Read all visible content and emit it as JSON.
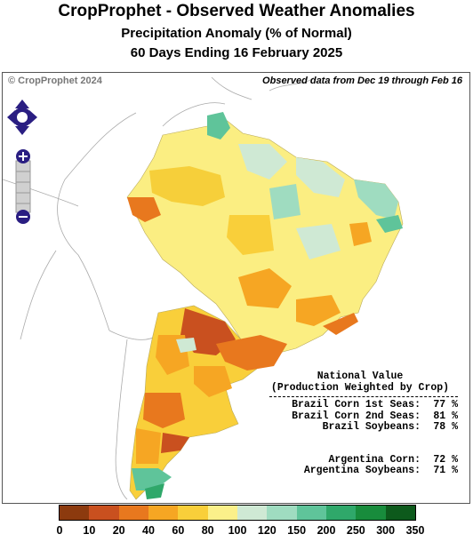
{
  "header": {
    "title": "CropProphet - Observed Weather Anomalies",
    "subtitle": "Precipitation Anomaly (% of Normal)",
    "period": "60 Days Ending 16 February 2025"
  },
  "map": {
    "copyright": "© CropProphet 2024",
    "observed_note": "Observed data from Dec 19 through Feb 16",
    "controls": {
      "pan": "pan-arrows-icon",
      "zoom_in": "plus-icon",
      "zoom_out": "minus-icon"
    }
  },
  "national": {
    "heading": "National Value",
    "subheading": "(Production Weighted by Crop)",
    "brazil": [
      {
        "label": "Brazil Corn 1st Seas:",
        "value": "77 %"
      },
      {
        "label": "Brazil Corn 2nd Seas:",
        "value": "81 %"
      },
      {
        "label": "Brazil Soybeans:",
        "value": "78 %"
      }
    ],
    "argentina": [
      {
        "label": "Argentina Corn:",
        "value": "72 %"
      },
      {
        "label": "Argentina Soybeans:",
        "value": "71 %"
      }
    ]
  },
  "legend": {
    "ticks": [
      "0",
      "10",
      "20",
      "40",
      "60",
      "80",
      "100",
      "120",
      "150",
      "200",
      "250",
      "300",
      "350"
    ],
    "colors": [
      "#8c3a0e",
      "#c9501f",
      "#e8781e",
      "#f6a623",
      "#f9cf3a",
      "#fbf08a",
      "#cfe9d4",
      "#9fdcc0",
      "#5fc49a",
      "#2fa86a",
      "#188c3c",
      "#0d5a1c"
    ]
  }
}
